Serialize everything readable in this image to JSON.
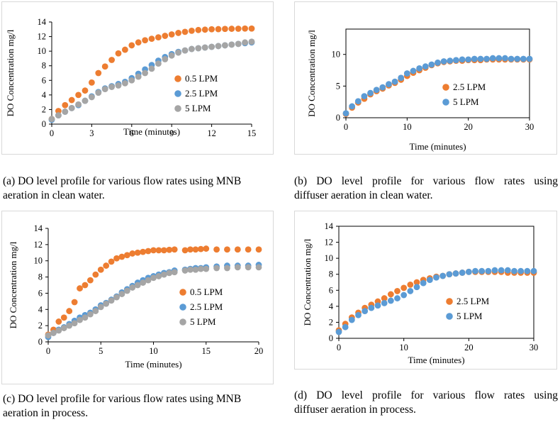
{
  "chart_data": [
    {
      "id": "a",
      "type": "scatter",
      "title": "",
      "xlabel": "Time (minutes)",
      "ylabel": "DO Concentration mg/l",
      "xlim": [
        0,
        15
      ],
      "ylim": [
        0,
        14
      ],
      "xticks": [
        0,
        3,
        6,
        9,
        12,
        15
      ],
      "yticks": [
        0,
        2,
        4,
        6,
        8,
        10,
        12,
        14
      ],
      "legend": "center-right",
      "frame": "axes",
      "series": [
        {
          "name": "0.5 LPM",
          "color": "#ED7D31",
          "x": [
            0,
            0.5,
            1,
            1.5,
            2,
            2.5,
            3,
            3.5,
            4,
            4.5,
            5,
            5.5,
            6,
            6.5,
            7,
            7.5,
            8,
            8.5,
            9,
            9.5,
            10,
            10.5,
            11,
            11.5,
            12,
            12.5,
            13,
            13.5,
            14,
            14.5,
            15
          ],
          "y": [
            0.7,
            1.8,
            2.6,
            3.3,
            4.0,
            4.6,
            5.7,
            7.0,
            7.9,
            8.8,
            9.7,
            10.2,
            10.8,
            11.2,
            11.5,
            11.7,
            11.9,
            12.1,
            12.3,
            12.5,
            12.65,
            12.8,
            12.9,
            12.95,
            13.0,
            13.02,
            13.05,
            13.07,
            13.08,
            13.1,
            13.1
          ]
        },
        {
          "name": "2.5 LPM",
          "color": "#5B9BD5",
          "x": [
            0,
            0.5,
            1,
            1.5,
            2,
            2.5,
            3,
            3.5,
            4,
            4.5,
            5,
            5.5,
            6,
            6.5,
            7,
            7.5,
            8,
            8.5,
            9,
            9.5,
            10,
            10.5,
            11,
            11.5,
            12,
            12.5,
            13,
            13.5,
            14,
            14.5,
            15
          ],
          "y": [
            0.6,
            1.2,
            1.7,
            2.2,
            2.6,
            3.2,
            3.8,
            4.4,
            4.9,
            5.2,
            5.5,
            5.8,
            6.3,
            6.9,
            7.5,
            8.1,
            8.7,
            9.2,
            9.6,
            9.9,
            10.1,
            10.3,
            10.4,
            10.5,
            10.6,
            10.7,
            10.8,
            10.9,
            11.0,
            11.1,
            11.2
          ]
        },
        {
          "name": "5 LPM",
          "color": "#A5A5A5",
          "x": [
            0,
            0.5,
            1,
            1.5,
            2,
            2.5,
            3,
            3.5,
            4,
            4.5,
            5,
            5.5,
            6,
            6.5,
            7,
            7.5,
            8,
            8.5,
            9,
            9.5,
            10,
            10.5,
            11,
            11.5,
            12,
            12.5,
            13,
            13.5,
            14,
            14.5,
            15
          ],
          "y": [
            0.7,
            1.2,
            1.7,
            2.2,
            2.7,
            3.2,
            3.7,
            4.3,
            4.8,
            5.1,
            5.3,
            5.6,
            6.0,
            6.5,
            7.0,
            7.6,
            8.3,
            8.9,
            9.4,
            9.8,
            10.1,
            10.3,
            10.4,
            10.5,
            10.6,
            10.7,
            10.8,
            10.9,
            11.0,
            11.2,
            11.3
          ]
        }
      ]
    },
    {
      "id": "b",
      "type": "scatter",
      "title": "",
      "xlabel": "Time (minutes)",
      "ylabel": "DO Concentration mg/l",
      "xlim": [
        0,
        30
      ],
      "ylim": [
        0,
        14
      ],
      "xticks": [
        0,
        10,
        20,
        30
      ],
      "yticks": [
        0,
        5,
        10
      ],
      "legend": "center-right",
      "frame": "box",
      "series": [
        {
          "name": "2.5 LPM",
          "color": "#ED7D31",
          "x": [
            0,
            1,
            2,
            3,
            4,
            5,
            6,
            7,
            8,
            9,
            10,
            11,
            12,
            13,
            14,
            15,
            16,
            17,
            18,
            19,
            20,
            21,
            22,
            23,
            24,
            25,
            26,
            27,
            28,
            29,
            30
          ],
          "y": [
            0.6,
            1.6,
            2.4,
            3.0,
            3.7,
            4.2,
            4.6,
            5.1,
            5.5,
            6.0,
            6.6,
            7.1,
            7.5,
            7.9,
            8.3,
            8.6,
            8.8,
            8.9,
            9.0,
            9.0,
            9.1,
            9.1,
            9.1,
            9.2,
            9.2,
            9.2,
            9.2,
            9.2,
            9.2,
            9.2,
            9.2
          ]
        },
        {
          "name": "5 LPM",
          "color": "#5B9BD5",
          "x": [
            0,
            1,
            2,
            3,
            4,
            5,
            6,
            7,
            8,
            9,
            10,
            11,
            12,
            13,
            14,
            15,
            16,
            17,
            18,
            19,
            20,
            21,
            22,
            23,
            24,
            25,
            26,
            27,
            28,
            29,
            30
          ],
          "y": [
            0.7,
            1.8,
            2.6,
            3.4,
            3.9,
            4.4,
            4.8,
            5.3,
            5.7,
            6.3,
            7.0,
            7.4,
            7.8,
            8.1,
            8.4,
            8.7,
            8.9,
            9.0,
            9.1,
            9.2,
            9.2,
            9.3,
            9.3,
            9.3,
            9.4,
            9.4,
            9.4,
            9.3,
            9.3,
            9.3,
            9.3
          ]
        }
      ]
    },
    {
      "id": "c",
      "type": "scatter",
      "title": "",
      "xlabel": "Time (minutes)",
      "ylabel": "DO Concentration mg/l",
      "xlim": [
        0,
        20
      ],
      "ylim": [
        0,
        14
      ],
      "xticks": [
        0,
        5,
        10,
        15,
        20
      ],
      "yticks": [
        0,
        2,
        4,
        6,
        8,
        10,
        12,
        14
      ],
      "legend": "center-right",
      "frame": "axes",
      "series": [
        {
          "name": "0.5 LPM",
          "color": "#ED7D31",
          "x": [
            0,
            0.5,
            1,
            1.5,
            2,
            2.5,
            3,
            3.5,
            4,
            4.5,
            5,
            5.5,
            6,
            6.5,
            7,
            7.5,
            8,
            8.5,
            9,
            9.5,
            10,
            10.5,
            11,
            11.5,
            12,
            13,
            13.5,
            14,
            14.5,
            15,
            16,
            17,
            18,
            19,
            20
          ],
          "y": [
            0.9,
            1.5,
            2.5,
            3.0,
            3.8,
            4.9,
            6.6,
            7.0,
            7.6,
            8.3,
            8.9,
            9.4,
            9.9,
            10.3,
            10.5,
            10.7,
            10.9,
            11.0,
            11.1,
            11.2,
            11.3,
            11.3,
            11.3,
            11.35,
            11.4,
            11.3,
            11.4,
            11.4,
            11.45,
            11.5,
            11.4,
            11.4,
            11.4,
            11.4,
            11.4
          ]
        },
        {
          "name": "2.5 LPM",
          "color": "#5B9BD5",
          "x": [
            0,
            0.5,
            1,
            1.5,
            2,
            2.5,
            3,
            3.5,
            4,
            4.5,
            5,
            5.5,
            6,
            6.5,
            7,
            7.5,
            8,
            8.5,
            9,
            9.5,
            10,
            10.5,
            11,
            11.5,
            12,
            13,
            13.5,
            14,
            14.5,
            15,
            16,
            17,
            18,
            19,
            20
          ],
          "y": [
            0.6,
            1.1,
            1.5,
            1.8,
            2.2,
            2.6,
            3.0,
            3.3,
            3.6,
            4.0,
            4.5,
            4.8,
            5.2,
            5.6,
            6.1,
            6.5,
            6.9,
            7.3,
            7.6,
            7.9,
            8.1,
            8.3,
            8.5,
            8.6,
            8.8,
            8.9,
            9.0,
            9.1,
            9.1,
            9.2,
            9.3,
            9.4,
            9.4,
            9.4,
            9.5
          ]
        },
        {
          "name": "5 LPM",
          "color": "#A5A5A5",
          "x": [
            0,
            0.5,
            1,
            1.5,
            2,
            2.5,
            3,
            3.5,
            4,
            4.5,
            5,
            5.5,
            6,
            6.5,
            7,
            7.5,
            8,
            8.5,
            9,
            9.5,
            10,
            10.5,
            11,
            11.5,
            12,
            13,
            13.5,
            14,
            14.5,
            15,
            16,
            17,
            18,
            19,
            20
          ],
          "y": [
            0.8,
            1.1,
            1.4,
            1.7,
            2.0,
            2.3,
            2.7,
            3.0,
            3.4,
            3.8,
            4.3,
            4.7,
            5.1,
            5.5,
            5.9,
            6.3,
            6.7,
            7.0,
            7.3,
            7.6,
            7.9,
            8.1,
            8.3,
            8.5,
            8.6,
            8.8,
            8.9,
            8.9,
            9.0,
            9.0,
            9.1,
            9.1,
            9.2,
            9.2,
            9.2
          ]
        }
      ]
    },
    {
      "id": "d",
      "type": "scatter",
      "title": "",
      "xlabel": "Time (minutes)",
      "ylabel": "DO Concentration mg/l",
      "xlim": [
        0,
        30
      ],
      "ylim": [
        0,
        14
      ],
      "xticks": [
        0,
        10,
        20,
        30
      ],
      "yticks": [
        0,
        2,
        4,
        6,
        8,
        10,
        12,
        14
      ],
      "legend": "center-right",
      "frame": "box",
      "series": [
        {
          "name": "2.5 LPM",
          "color": "#ED7D31",
          "x": [
            0,
            1,
            2,
            3,
            4,
            5,
            6,
            7,
            8,
            9,
            10,
            11,
            12,
            13,
            14,
            15,
            16,
            17,
            18,
            19,
            20,
            21,
            22,
            23,
            24,
            25,
            26,
            27,
            28,
            29,
            30
          ],
          "y": [
            1.0,
            1.8,
            2.6,
            3.2,
            3.8,
            4.2,
            4.6,
            5.0,
            5.5,
            5.9,
            6.3,
            6.7,
            7.0,
            7.3,
            7.5,
            7.7,
            7.8,
            8.0,
            8.1,
            8.2,
            8.3,
            8.3,
            8.3,
            8.3,
            8.3,
            8.3,
            8.2,
            8.2,
            8.2,
            8.2,
            8.2
          ]
        },
        {
          "name": "5 LPM",
          "color": "#5B9BD5",
          "x": [
            0,
            1,
            2,
            3,
            4,
            5,
            6,
            7,
            8,
            9,
            10,
            11,
            12,
            13,
            14,
            15,
            16,
            17,
            18,
            19,
            20,
            21,
            22,
            23,
            24,
            25,
            26,
            27,
            28,
            29,
            30
          ],
          "y": [
            0.8,
            1.4,
            2.3,
            2.9,
            3.4,
            3.8,
            4.1,
            4.4,
            4.7,
            5.0,
            5.4,
            5.9,
            6.4,
            6.9,
            7.3,
            7.6,
            7.8,
            8.0,
            8.1,
            8.2,
            8.3,
            8.4,
            8.4,
            8.4,
            8.5,
            8.5,
            8.5,
            8.4,
            8.4,
            8.4,
            8.4
          ]
        }
      ]
    }
  ],
  "captions": {
    "a": [
      "(a) DO level profile for various flow rates using MNB",
      "aeration in clean water."
    ],
    "b": [
      "(b) DO level profile for various flow rates using",
      "diffuser aeration in clean water."
    ],
    "c": [
      "(c) DO level profile for various flow rates using MNB",
      "aeration in process."
    ],
    "d": [
      "(d) DO level profile for various flow rates using",
      "diffuser aeration in process."
    ]
  }
}
